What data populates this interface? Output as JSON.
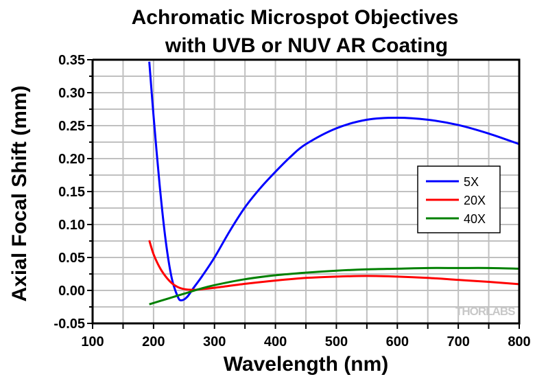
{
  "chart_data": {
    "type": "line",
    "title": [
      "Achromatic Microspot Objectives",
      "with UVB or NUV AR Coating"
    ],
    "xlabel": "Wavelength (nm)",
    "ylabel": "Axial Focal Shift (mm)",
    "xlim": [
      100,
      800
    ],
    "ylim": [
      -0.05,
      0.35
    ],
    "xticks": [
      "100",
      "200",
      "300",
      "400",
      "500",
      "600",
      "700",
      "800"
    ],
    "xtick_values": [
      100,
      200,
      300,
      400,
      500,
      600,
      700,
      800
    ],
    "yticks": [
      "-0.05",
      "0.00",
      "0.05",
      "0.10",
      "0.15",
      "0.20",
      "0.25",
      "0.30",
      "0.35"
    ],
    "ytick_values": [
      -0.05,
      0.0,
      0.05,
      0.1,
      0.15,
      0.2,
      0.25,
      0.3,
      0.35
    ],
    "grid": true,
    "legend_position": "right",
    "watermark": "THORLABS",
    "series": [
      {
        "name": "5X",
        "color": "#0000ff",
        "x": [
          193,
          200,
          210,
          220,
          230,
          240,
          246,
          255,
          265,
          280,
          300,
          325,
          350,
          375,
          400,
          425,
          450,
          500,
          550,
          600,
          650,
          700,
          750,
          800
        ],
        "y": [
          0.347,
          0.265,
          0.16,
          0.075,
          0.018,
          -0.01,
          -0.015,
          -0.01,
          0.003,
          0.022,
          0.05,
          0.09,
          0.126,
          0.155,
          0.18,
          0.203,
          0.222,
          0.246,
          0.259,
          0.262,
          0.259,
          0.251,
          0.238,
          0.222
        ]
      },
      {
        "name": "20X",
        "color": "#ff0000",
        "x": [
          193,
          200,
          210,
          220,
          230,
          240,
          250,
          260,
          270,
          300,
          350,
          400,
          450,
          500,
          550,
          600,
          650,
          700,
          750,
          800
        ],
        "y": [
          0.076,
          0.055,
          0.035,
          0.021,
          0.011,
          0.005,
          0.002,
          0.001,
          0.001,
          0.004,
          0.01,
          0.015,
          0.019,
          0.021,
          0.022,
          0.021,
          0.019,
          0.016,
          0.013,
          0.0095
        ]
      },
      {
        "name": "40X",
        "color": "#008000",
        "x": [
          193,
          225,
          250,
          275,
          300,
          350,
          400,
          450,
          500,
          550,
          600,
          650,
          700,
          750,
          800
        ],
        "y": [
          -0.021,
          -0.012,
          -0.005,
          0.002,
          0.008,
          0.017,
          0.023,
          0.027,
          0.03,
          0.032,
          0.033,
          0.034,
          0.034,
          0.034,
          0.033
        ]
      }
    ]
  }
}
